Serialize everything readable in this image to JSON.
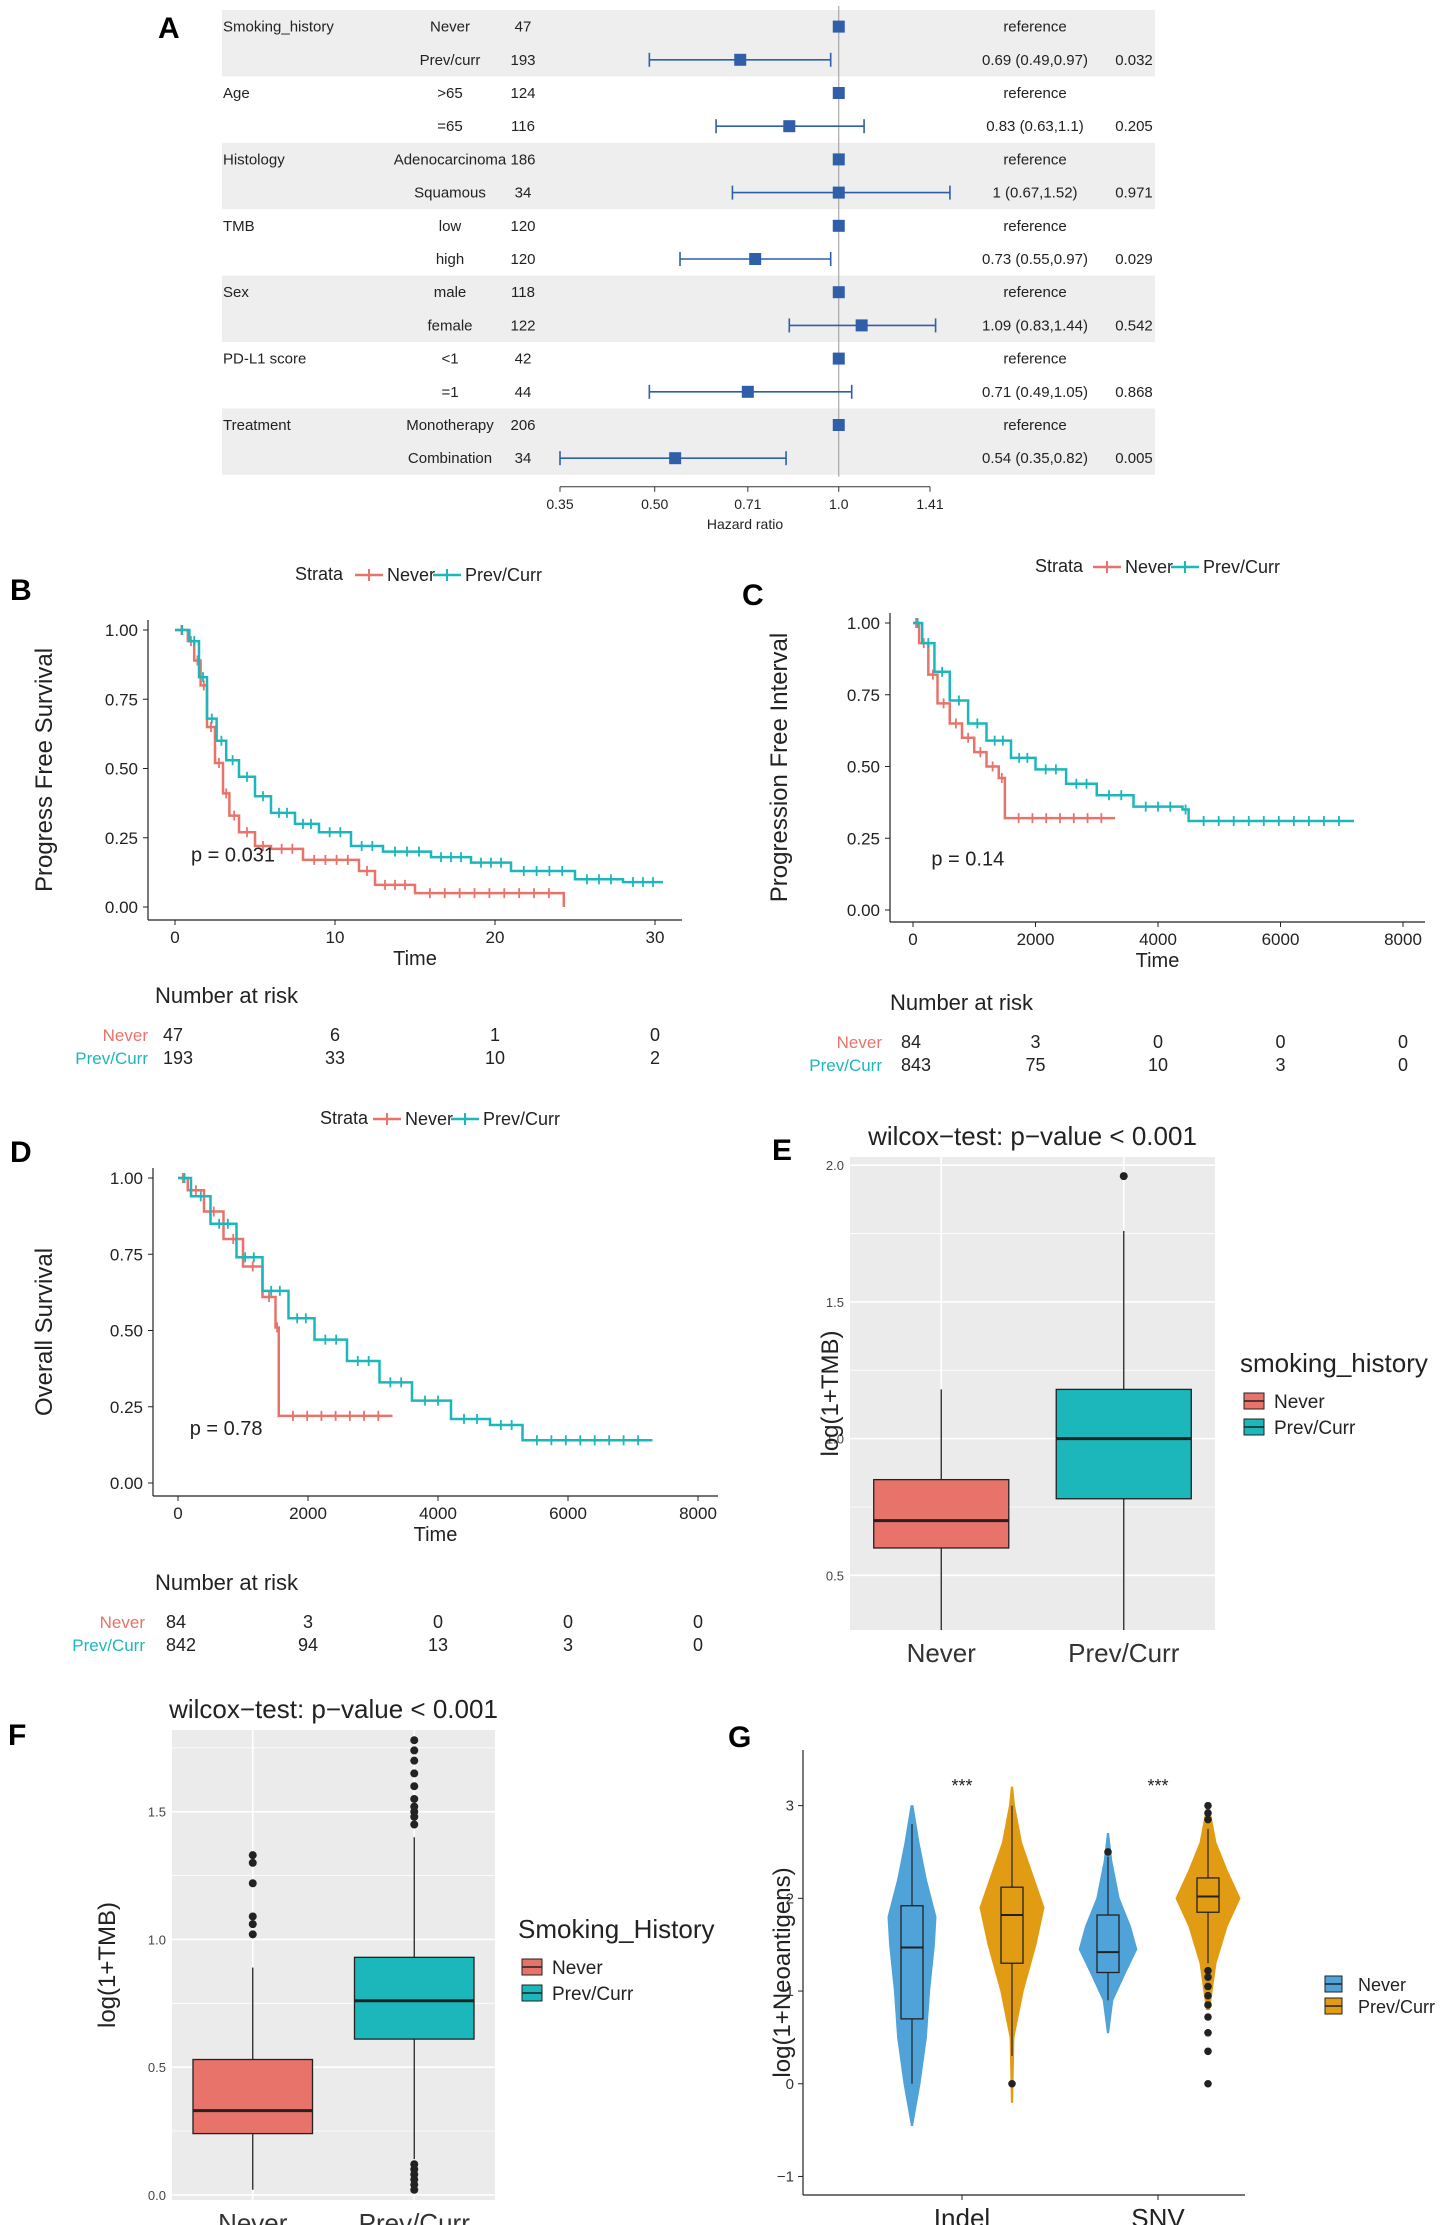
{
  "colors": {
    "never": "#E8736B",
    "prev": "#1CB7BB",
    "forest": "#2F5FA8",
    "panel_bg": "#EBEBEB",
    "band": "#EEEEEE",
    "g_never": "#4FA3D8",
    "g_prev": "#E19C13"
  },
  "chart_data": [
    {
      "id": "A",
      "type": "forest",
      "panel_label": "A",
      "xlabel": "Hazard ratio",
      "x_ticks": [
        "0.35",
        "0.50",
        "0.71",
        "1.0",
        "1.41"
      ],
      "x_tick_values": [
        0.35,
        0.5,
        0.71,
        1.0,
        1.41
      ],
      "rows": [
        {
          "var": "Smoking_history",
          "level": "Never",
          "n": "47",
          "hr": 1.0,
          "lo": null,
          "hi": null,
          "label": "reference",
          "p": ""
        },
        {
          "var": "",
          "level": "Prev/curr",
          "n": "193",
          "hr": 0.69,
          "lo": 0.49,
          "hi": 0.97,
          "label": "0.69 (0.49,0.97)",
          "p": "0.032"
        },
        {
          "var": "Age",
          "level": ">65",
          "n": "124",
          "hr": 1.0,
          "lo": null,
          "hi": null,
          "label": "reference",
          "p": ""
        },
        {
          "var": "",
          "level": "=65",
          "n": "116",
          "hr": 0.83,
          "lo": 0.63,
          "hi": 1.1,
          "label": "0.83 (0.63,1.1)",
          "p": "0.205"
        },
        {
          "var": "Histology",
          "level": "Adenocarcinoma",
          "n": "186",
          "hr": 1.0,
          "lo": null,
          "hi": null,
          "label": "reference",
          "p": ""
        },
        {
          "var": "",
          "level": "Squamous",
          "n": "34",
          "hr": 1.0,
          "lo": 0.67,
          "hi": 1.52,
          "label": "1 (0.67,1.52)",
          "p": "0.971"
        },
        {
          "var": "TMB",
          "level": "low",
          "n": "120",
          "hr": 1.0,
          "lo": null,
          "hi": null,
          "label": "reference",
          "p": ""
        },
        {
          "var": "",
          "level": "high",
          "n": "120",
          "hr": 0.73,
          "lo": 0.55,
          "hi": 0.97,
          "label": "0.73 (0.55,0.97)",
          "p": "0.029"
        },
        {
          "var": "Sex",
          "level": "male",
          "n": "118",
          "hr": 1.0,
          "lo": null,
          "hi": null,
          "label": "reference",
          "p": ""
        },
        {
          "var": "",
          "level": "female",
          "n": "122",
          "hr": 1.09,
          "lo": 0.83,
          "hi": 1.44,
          "label": "1.09 (0.83,1.44)",
          "p": "0.542"
        },
        {
          "var": "PD-L1 score",
          "level": "<1",
          "n": "42",
          "hr": 1.0,
          "lo": null,
          "hi": null,
          "label": "reference",
          "p": ""
        },
        {
          "var": "",
          "level": "=1",
          "n": "44",
          "hr": 0.71,
          "lo": 0.49,
          "hi": 1.05,
          "label": "0.71 (0.49,1.05)",
          "p": "0.868"
        },
        {
          "var": "Treatment",
          "level": "Monotherapy",
          "n": "206",
          "hr": 1.0,
          "lo": null,
          "hi": null,
          "label": "reference",
          "p": ""
        },
        {
          "var": "",
          "level": "Combination",
          "n": "34",
          "hr": 0.54,
          "lo": 0.35,
          "hi": 0.82,
          "label": "0.54 (0.35,0.82)",
          "p": "0.005"
        }
      ]
    },
    {
      "id": "B",
      "type": "km",
      "panel_label": "B",
      "legend_title": "Strata",
      "legend": [
        "Never",
        "Prev/Curr"
      ],
      "ylabel": "Progress Free Survival",
      "xlabel": "Time",
      "xlim": [
        0,
        30
      ],
      "x_ticks": [
        0,
        10,
        20,
        30
      ],
      "ylim": [
        0,
        1
      ],
      "y_ticks": [
        "0.00",
        "0.25",
        "0.50",
        "0.75",
        "1.00"
      ],
      "pval": "p = 0.031",
      "pval_at": [
        1,
        0.19
      ],
      "series": [
        {
          "name": "Never",
          "x": [
            0,
            0.8,
            1.2,
            1.6,
            2.0,
            2.5,
            3.0,
            3.4,
            4.0,
            5.0,
            6.0,
            8.0,
            11.5,
            12.5,
            15.0,
            24.3
          ],
          "y": [
            1.0,
            0.96,
            0.89,
            0.8,
            0.65,
            0.52,
            0.41,
            0.33,
            0.27,
            0.22,
            0.21,
            0.17,
            0.13,
            0.08,
            0.05,
            0.0
          ]
        },
        {
          "name": "Prev/Curr",
          "x": [
            0,
            0.9,
            1.5,
            2.0,
            2.6,
            3.2,
            4.0,
            5.0,
            6.0,
            7.5,
            9.0,
            11.0,
            13.0,
            16.0,
            18.5,
            21.0,
            25.0,
            28.0,
            30.5
          ],
          "y": [
            1.0,
            0.96,
            0.83,
            0.68,
            0.6,
            0.53,
            0.47,
            0.4,
            0.34,
            0.3,
            0.27,
            0.22,
            0.2,
            0.18,
            0.16,
            0.13,
            0.1,
            0.09,
            0.09
          ]
        }
      ],
      "risk_title": "Number at risk",
      "risk_x": [
        0,
        10,
        20,
        30
      ],
      "risk": [
        {
          "name": "Never",
          "values": [
            "47",
            "6",
            "1",
            "0"
          ]
        },
        {
          "name": "Prev/Curr",
          "values": [
            "193",
            "33",
            "10",
            "2"
          ]
        }
      ]
    },
    {
      "id": "C",
      "type": "km",
      "panel_label": "C",
      "legend_title": "Strata",
      "legend": [
        "Never",
        "Prev/Curr"
      ],
      "ylabel": "Progression Free Interval",
      "xlabel": "Time",
      "xlim": [
        0,
        8000
      ],
      "x_ticks": [
        0,
        2000,
        4000,
        6000,
        8000
      ],
      "ylim": [
        0,
        1
      ],
      "y_ticks": [
        "0.00",
        "0.25",
        "0.50",
        "0.75",
        "1.00"
      ],
      "pval": "p = 0.14",
      "pval_at": [
        300,
        0.18
      ],
      "series": [
        {
          "name": "Never",
          "x": [
            0,
            100,
            250,
            400,
            600,
            800,
            1000,
            1200,
            1400,
            1500,
            3300
          ],
          "y": [
            1.0,
            0.93,
            0.82,
            0.72,
            0.65,
            0.6,
            0.55,
            0.5,
            0.46,
            0.32,
            0.32
          ]
        },
        {
          "name": "Prev/Curr",
          "x": [
            0,
            150,
            350,
            600,
            900,
            1200,
            1600,
            2000,
            2500,
            3000,
            3600,
            4400,
            4500,
            7200
          ],
          "y": [
            1.0,
            0.93,
            0.83,
            0.73,
            0.65,
            0.59,
            0.53,
            0.49,
            0.44,
            0.4,
            0.36,
            0.35,
            0.31,
            0.31
          ]
        }
      ],
      "risk_title": "Number at risk",
      "risk_x": [
        0,
        2000,
        4000,
        6000,
        8000
      ],
      "risk": [
        {
          "name": "Never",
          "values": [
            "84",
            "3",
            "0",
            "0",
            "0"
          ]
        },
        {
          "name": "Prev/Curr",
          "values": [
            "843",
            "75",
            "10",
            "3",
            "0"
          ]
        }
      ]
    },
    {
      "id": "D",
      "type": "km",
      "panel_label": "D",
      "legend_title": "Strata",
      "legend": [
        "Never",
        "Prev/Curr"
      ],
      "ylabel": "Overall Survival",
      "xlabel": "Time",
      "xlim": [
        0,
        8000
      ],
      "x_ticks": [
        0,
        2000,
        4000,
        6000,
        8000
      ],
      "ylim": [
        0,
        1
      ],
      "y_ticks": [
        "0.00",
        "0.25",
        "0.50",
        "0.75",
        "1.00"
      ],
      "pval": "p = 0.78",
      "pval_at": [
        180,
        0.18
      ],
      "series": [
        {
          "name": "Never",
          "x": [
            0,
            150,
            400,
            700,
            1000,
            1300,
            1500,
            1550,
            3300
          ],
          "y": [
            1.0,
            0.96,
            0.89,
            0.8,
            0.71,
            0.61,
            0.51,
            0.22,
            0.22
          ]
        },
        {
          "name": "Prev/Curr",
          "x": [
            0,
            200,
            500,
            900,
            1300,
            1700,
            2100,
            2600,
            3100,
            3600,
            4200,
            4800,
            5300,
            7300
          ],
          "y": [
            1.0,
            0.94,
            0.85,
            0.74,
            0.63,
            0.54,
            0.47,
            0.4,
            0.33,
            0.27,
            0.21,
            0.19,
            0.14,
            0.14
          ]
        }
      ],
      "risk_title": "Number at risk",
      "risk_x": [
        0,
        2000,
        4000,
        6000,
        8000
      ],
      "risk": [
        {
          "name": "Never",
          "values": [
            "84",
            "3",
            "0",
            "0",
            "0"
          ]
        },
        {
          "name": "Prev/Curr",
          "values": [
            "842",
            "94",
            "13",
            "3",
            "0"
          ]
        }
      ]
    },
    {
      "id": "E",
      "type": "box",
      "panel_label": "E",
      "title": "wilcox−test: p−value < 0.001",
      "ylabel": "log(1+TMB)",
      "categories": [
        "Never",
        "Prev/Curr"
      ],
      "ylim": [
        0.3,
        2.03
      ],
      "y_ticks": [
        "0.5",
        "1.0",
        "1.5",
        "2.0"
      ],
      "y_tick_values": [
        0.5,
        1.0,
        1.5,
        2.0
      ],
      "legend_title": "smoking_history",
      "legend": [
        "Never",
        "Prev/Curr"
      ],
      "boxes": [
        {
          "name": "Never",
          "min": 0.3,
          "q1": 0.6,
          "median": 0.7,
          "q3": 0.85,
          "max": 1.18,
          "outliers": []
        },
        {
          "name": "Prev/Curr",
          "min": 0.3,
          "q1": 0.78,
          "median": 1.0,
          "q3": 1.18,
          "max": 1.76,
          "outliers": [
            1.96
          ]
        }
      ]
    },
    {
      "id": "F",
      "type": "box",
      "panel_label": "F",
      "title": "wilcox−test: p−value < 0.001",
      "ylabel": "log(1+TMB)",
      "categories": [
        "Never",
        "Prev/Curr"
      ],
      "ylim": [
        -0.02,
        1.82
      ],
      "y_ticks": [
        "0.0",
        "0.5",
        "1.0",
        "1.5"
      ],
      "y_tick_values": [
        0.0,
        0.5,
        1.0,
        1.5
      ],
      "legend_title": "Smoking_History",
      "legend": [
        "Never",
        "Prev/Curr"
      ],
      "boxes": [
        {
          "name": "Never",
          "min": 0.02,
          "q1": 0.24,
          "median": 0.33,
          "q3": 0.53,
          "max": 0.89,
          "outliers": [
            1.02,
            1.06,
            1.09,
            1.22,
            1.3,
            1.33
          ]
        },
        {
          "name": "Prev/Curr",
          "min": 0.14,
          "q1": 0.61,
          "median": 0.76,
          "q3": 0.93,
          "max": 1.4,
          "outliers": [
            0.12,
            0.1,
            0.08,
            0.06,
            0.04,
            0.02,
            1.45,
            1.48,
            1.5,
            1.52,
            1.55,
            1.6,
            1.65,
            1.7,
            1.74,
            1.78
          ]
        }
      ]
    },
    {
      "id": "G",
      "type": "violin",
      "panel_label": "G",
      "ylabel": "log(1+Neoantigens)",
      "categories": [
        "Indel",
        "SNV"
      ],
      "ylim": [
        -1.2,
        3.6
      ],
      "y_ticks": [
        "−1",
        "0",
        "1",
        "2",
        "3"
      ],
      "y_tick_values": [
        -1,
        0,
        1,
        2,
        3
      ],
      "signif": [
        "***",
        "***"
      ],
      "legend": [
        "Never",
        "Prev/Curr"
      ],
      "groups": [
        {
          "category": "Indel",
          "name": "Never",
          "ymin": -0.45,
          "ymax": 3.0,
          "q1": 0.7,
          "median": 1.47,
          "q3": 1.92,
          "wlo": 0.0,
          "whi": 2.8,
          "outliers": [],
          "prof": [
            [
              -0.45,
              0.02
            ],
            [
              0.0,
              0.25
            ],
            [
              0.5,
              0.45
            ],
            [
              1.0,
              0.55
            ],
            [
              1.5,
              0.7
            ],
            [
              1.8,
              0.75
            ],
            [
              2.2,
              0.45
            ],
            [
              2.6,
              0.22
            ],
            [
              3.0,
              0.03
            ]
          ]
        },
        {
          "category": "Indel",
          "name": "Prev/Curr",
          "ymin": -0.2,
          "ymax": 3.2,
          "q1": 1.3,
          "median": 1.82,
          "q3": 2.12,
          "wlo": 0.3,
          "whi": 3.0,
          "outliers": [
            0.0
          ],
          "prof": [
            [
              -0.2,
              0.02
            ],
            [
              0.5,
              0.06
            ],
            [
              1.0,
              0.35
            ],
            [
              1.5,
              0.75
            ],
            [
              1.9,
              1.0
            ],
            [
              2.2,
              0.7
            ],
            [
              2.6,
              0.3
            ],
            [
              3.0,
              0.08
            ],
            [
              3.2,
              0.02
            ]
          ]
        },
        {
          "category": "SNV",
          "name": "Never",
          "ymin": 0.55,
          "ymax": 2.7,
          "q1": 1.2,
          "median": 1.42,
          "q3": 1.82,
          "wlo": 0.9,
          "whi": 2.45,
          "outliers": [
            2.5
          ],
          "prof": [
            [
              0.55,
              0.02
            ],
            [
              0.9,
              0.15
            ],
            [
              1.2,
              0.55
            ],
            [
              1.45,
              0.9
            ],
            [
              1.7,
              0.7
            ],
            [
              2.0,
              0.35
            ],
            [
              2.4,
              0.12
            ],
            [
              2.7,
              0.02
            ]
          ]
        },
        {
          "category": "SNV",
          "name": "Prev/Curr",
          "ymin": 0.8,
          "ymax": 3.0,
          "q1": 1.85,
          "median": 2.02,
          "q3": 2.22,
          "wlo": 1.3,
          "whi": 2.75,
          "outliers": [
            0.0,
            0.35,
            0.55,
            0.72,
            0.85,
            0.95,
            1.05,
            1.15,
            1.22,
            2.85,
            2.92,
            3.0
          ],
          "prof": [
            [
              0.8,
              0.05
            ],
            [
              1.3,
              0.25
            ],
            [
              1.7,
              0.6
            ],
            [
              2.0,
              1.0
            ],
            [
              2.3,
              0.6
            ],
            [
              2.6,
              0.25
            ],
            [
              3.0,
              0.03
            ]
          ]
        }
      ]
    }
  ]
}
